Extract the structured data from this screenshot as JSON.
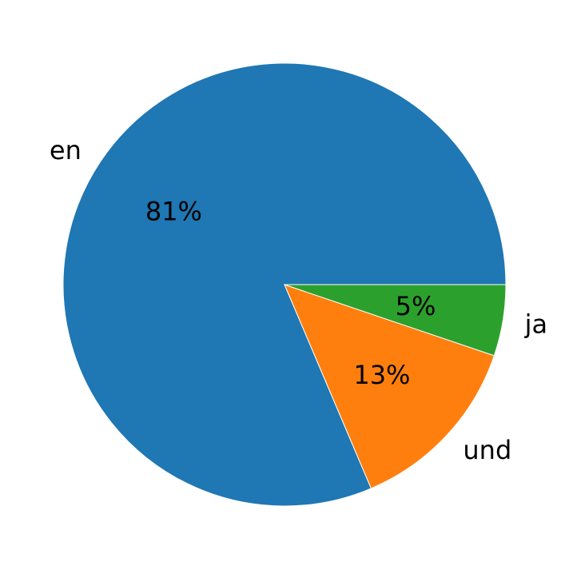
{
  "chart_data": {
    "type": "pie",
    "slices": [
      {
        "label": "en",
        "value": 81.4,
        "display": "81%",
        "color": "#1f77b4"
      },
      {
        "label": "und",
        "value": 13.4,
        "display": "13%",
        "color": "#ff7f0e"
      },
      {
        "label": "ja",
        "value": 5.2,
        "display": "5%",
        "color": "#2ca02c"
      }
    ],
    "start_angle_deg": 0,
    "direction": "counterclockwise",
    "legend": "none"
  }
}
